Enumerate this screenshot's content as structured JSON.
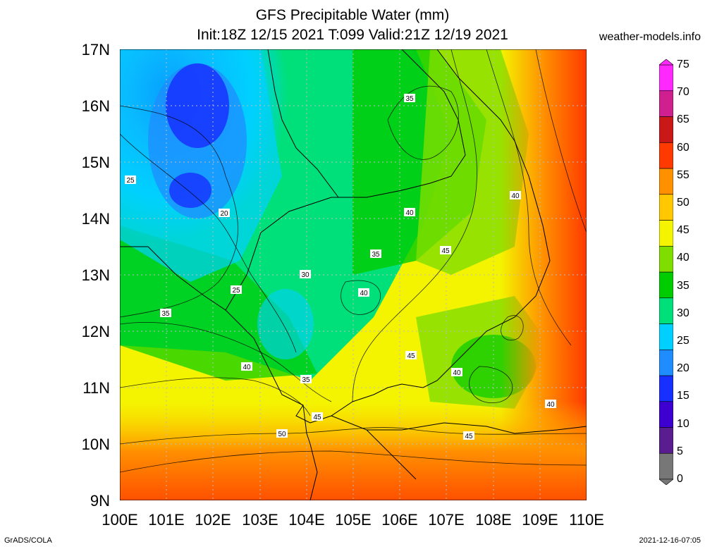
{
  "header": {
    "title_line1": "GFS Precipitable Water (mm)",
    "title_line2": "Init:18Z 12/15 2021 T:099 Valid:21Z 12/19 2021",
    "site": "weather-models.info"
  },
  "footer": {
    "left": "GrADS/COLA",
    "right": "2021-12-16-07:05"
  },
  "map": {
    "lat_labels": [
      "17N",
      "16N",
      "15N",
      "14N",
      "13N",
      "12N",
      "11N",
      "10N",
      "9N"
    ],
    "lon_labels": [
      "100E",
      "101E",
      "102E",
      "103E",
      "104E",
      "105E",
      "106E",
      "107E",
      "108E",
      "109E",
      "110E"
    ],
    "contour_labels": [
      "35",
      "25",
      "20",
      "40",
      "40",
      "35",
      "45",
      "25",
      "30",
      "40",
      "35",
      "45",
      "40",
      "40",
      "35",
      "45",
      "50",
      "45",
      "40"
    ]
  },
  "colorbar": {
    "labels": [
      "75",
      "70",
      "65",
      "60",
      "55",
      "50",
      "45",
      "40",
      "35",
      "30",
      "25",
      "20",
      "15",
      "10",
      "5",
      "0"
    ],
    "colors": [
      "#777777",
      "#5a1d8f",
      "#3d00d0",
      "#1830ff",
      "#1f8cff",
      "#00d0ff",
      "#00e07a",
      "#00cc00",
      "#80dd00",
      "#f4f400",
      "#ffc800",
      "#ff9000",
      "#ff3a00",
      "#c81818",
      "#d02090",
      "#ff28ff"
    ]
  }
}
